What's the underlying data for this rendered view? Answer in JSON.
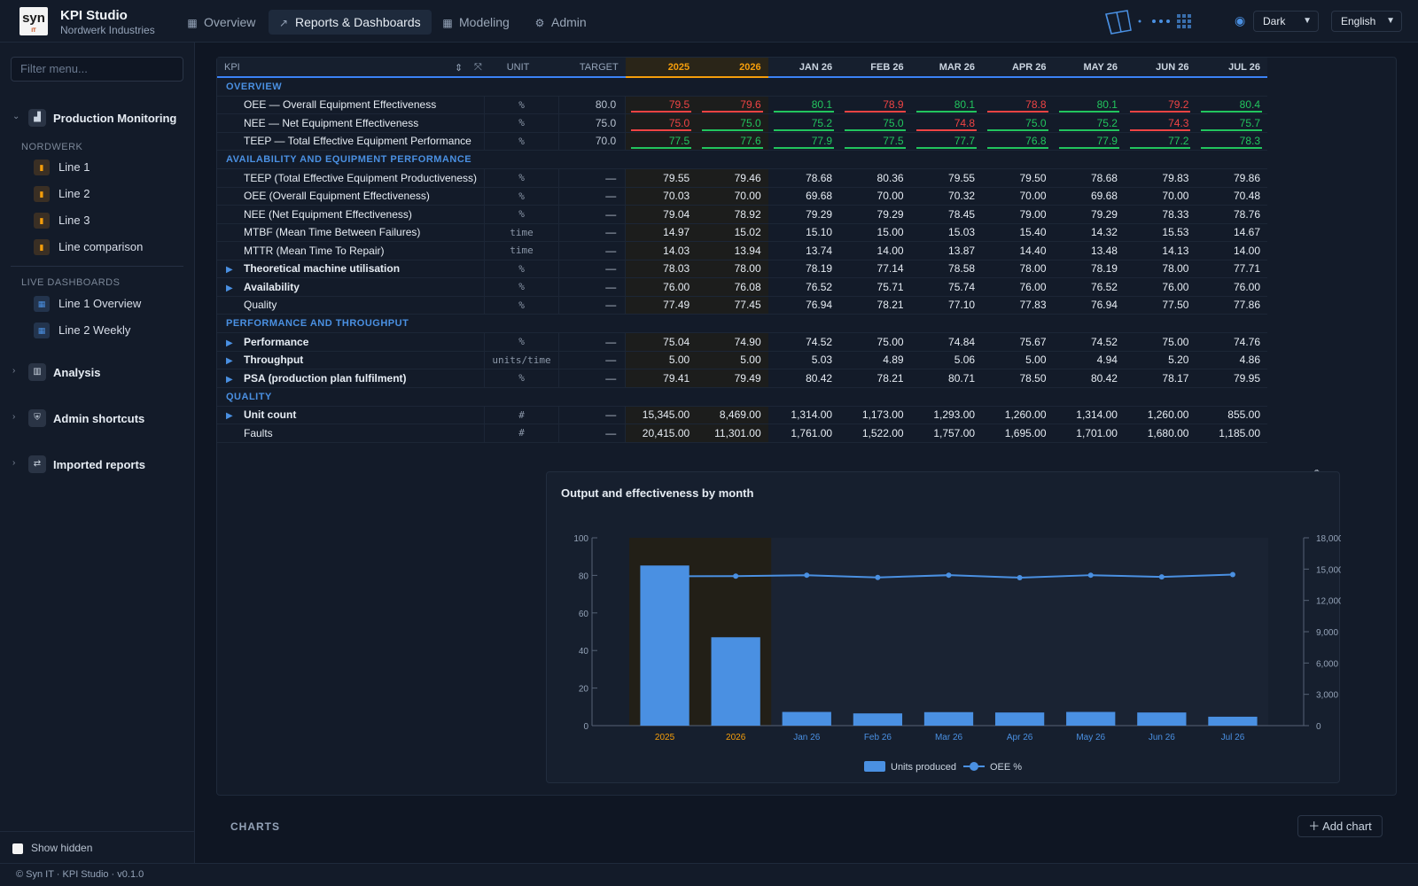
{
  "app": {
    "logo_text": "syn",
    "logo_sub": "IT",
    "title": "KPI Studio",
    "subtitle": "Nordwerk Industries"
  },
  "nav": [
    {
      "label": "Overview",
      "icon": "dashboard-icon"
    },
    {
      "label": "Reports & Dashboards",
      "icon": "trend-icon",
      "active": true
    },
    {
      "label": "Modeling",
      "icon": "grid-icon"
    },
    {
      "label": "Admin",
      "icon": "gear-icon"
    }
  ],
  "header": {
    "theme_label": "Dark",
    "language_label": "English"
  },
  "sidebar": {
    "filter_placeholder": "Filter menu...",
    "groups": {
      "production": "Production Monitoring",
      "analysis": "Analysis",
      "admin": "Admin shortcuts",
      "imported": "Imported reports"
    },
    "sections": {
      "nordwerk": "NORDWERK",
      "live": "LIVE DASHBOARDS"
    },
    "nordwerk_items": [
      "Line 1",
      "Line 2",
      "Line 3",
      "Line comparison"
    ],
    "live_items": [
      "Line 1 Overview",
      "Line 2 Weekly"
    ],
    "show_hidden": "Show hidden"
  },
  "table": {
    "columns": {
      "kpi": "KPI",
      "unit": "UNIT",
      "target": "TARGET"
    },
    "periods": [
      "2025",
      "2026",
      "JAN 26",
      "FEB 26",
      "MAR 26",
      "APR 26",
      "MAY 26",
      "JUN 26",
      "JUL 26"
    ],
    "sections": [
      {
        "title": "OVERVIEW",
        "rows": [
          {
            "name": "OEE — Overall Equipment Effectiveness",
            "unit": "%",
            "target": "80.0",
            "values": [
              "79.5",
              "79.6",
              "80.1",
              "78.9",
              "80.1",
              "78.8",
              "80.1",
              "79.2",
              "80.4"
            ],
            "status": [
              "bad",
              "bad",
              "good",
              "bad",
              "good",
              "bad",
              "good",
              "bad",
              "good"
            ]
          },
          {
            "name": "NEE — Net Equipment Effectiveness",
            "unit": "%",
            "target": "75.0",
            "values": [
              "75.0",
              "75.0",
              "75.2",
              "75.0",
              "74.8",
              "75.0",
              "75.2",
              "74.3",
              "75.7"
            ],
            "status": [
              "bad",
              "good",
              "good",
              "good",
              "bad",
              "good",
              "good",
              "bad",
              "good"
            ]
          },
          {
            "name": "TEEP — Total Effective Equipment Performance",
            "unit": "%",
            "target": "70.0",
            "values": [
              "77.5",
              "77.6",
              "77.9",
              "77.5",
              "77.7",
              "76.8",
              "77.9",
              "77.2",
              "78.3"
            ],
            "status": [
              "good",
              "good",
              "good",
              "good",
              "good",
              "good",
              "good",
              "good",
              "good"
            ]
          }
        ]
      },
      {
        "title": "AVAILABILITY AND EQUIPMENT PERFORMANCE",
        "rows": [
          {
            "name": "TEEP (Total Effective Equipment Productiveness)",
            "unit": "%",
            "target": "—",
            "values": [
              "79.55",
              "79.46",
              "78.68",
              "80.36",
              "79.55",
              "79.50",
              "78.68",
              "79.83",
              "79.86"
            ]
          },
          {
            "name": "OEE (Overall Equipment Effectiveness)",
            "unit": "%",
            "target": "—",
            "values": [
              "70.03",
              "70.00",
              "69.68",
              "70.00",
              "70.32",
              "70.00",
              "69.68",
              "70.00",
              "70.48"
            ]
          },
          {
            "name": "NEE (Net Equipment Effectiveness)",
            "unit": "%",
            "target": "—",
            "values": [
              "79.04",
              "78.92",
              "79.29",
              "79.29",
              "78.45",
              "79.00",
              "79.29",
              "78.33",
              "78.76"
            ]
          },
          {
            "name": "MTBF (Mean Time Between Failures)",
            "unit": "time",
            "target": "—",
            "values": [
              "14.97",
              "15.02",
              "15.10",
              "15.00",
              "15.03",
              "15.40",
              "14.32",
              "15.53",
              "14.67"
            ]
          },
          {
            "name": "MTTR (Mean Time To Repair)",
            "unit": "time",
            "target": "—",
            "values": [
              "14.03",
              "13.94",
              "13.74",
              "14.00",
              "13.87",
              "14.40",
              "13.48",
              "14.13",
              "14.00"
            ]
          },
          {
            "name": "Theoretical machine utilisation",
            "expandable": true,
            "unit": "%",
            "target": "—",
            "values": [
              "78.03",
              "78.00",
              "78.19",
              "77.14",
              "78.58",
              "78.00",
              "78.19",
              "78.00",
              "77.71"
            ]
          },
          {
            "name": "Availability",
            "expandable": true,
            "unit": "%",
            "target": "—",
            "values": [
              "76.00",
              "76.08",
              "76.52",
              "75.71",
              "75.74",
              "76.00",
              "76.52",
              "76.00",
              "76.00"
            ]
          },
          {
            "name": "Quality",
            "unit": "%",
            "target": "—",
            "values": [
              "77.49",
              "77.45",
              "76.94",
              "78.21",
              "77.10",
              "77.83",
              "76.94",
              "77.50",
              "77.86"
            ]
          }
        ]
      },
      {
        "title": "PERFORMANCE AND THROUGHPUT",
        "rows": [
          {
            "name": "Performance",
            "expandable": true,
            "unit": "%",
            "target": "—",
            "values": [
              "75.04",
              "74.90",
              "74.52",
              "75.00",
              "74.84",
              "75.67",
              "74.52",
              "75.00",
              "74.76"
            ]
          },
          {
            "name": "Throughput",
            "expandable": true,
            "unit": "units/time",
            "target": "—",
            "values": [
              "5.00",
              "5.00",
              "5.03",
              "4.89",
              "5.06",
              "5.00",
              "4.94",
              "5.20",
              "4.86"
            ]
          },
          {
            "name": "PSA (production plan fulfilment)",
            "expandable": true,
            "unit": "%",
            "target": "—",
            "values": [
              "79.41",
              "79.49",
              "80.42",
              "78.21",
              "80.71",
              "78.50",
              "80.42",
              "78.17",
              "79.95"
            ]
          }
        ]
      },
      {
        "title": "QUALITY",
        "rows": [
          {
            "name": "Unit count",
            "expandable": true,
            "unit": "#",
            "target": "—",
            "values": [
              "15,345.00",
              "8,469.00",
              "1,314.00",
              "1,173.00",
              "1,293.00",
              "1,260.00",
              "1,314.00",
              "1,260.00",
              "855.00"
            ]
          },
          {
            "name": "Faults",
            "unit": "#",
            "target": "—",
            "values": [
              "20,415.00",
              "11,301.00",
              "1,761.00",
              "1,522.00",
              "1,757.00",
              "1,695.00",
              "1,701.00",
              "1,680.00",
              "1,185.00"
            ]
          }
        ]
      }
    ]
  },
  "chart_data": {
    "type": "bar",
    "title": "Output and effectiveness by month",
    "categories": [
      "2025",
      "2026",
      "Jan 26",
      "Feb 26",
      "Mar 26",
      "Apr 26",
      "May 26",
      "Jun 26",
      "Jul 26"
    ],
    "highlight_categories": [
      "2025",
      "2026"
    ],
    "series": [
      {
        "name": "Units produced",
        "type": "bar",
        "axis": "right",
        "values": [
          15345,
          8469,
          1314,
          1173,
          1293,
          1260,
          1314,
          1260,
          855
        ]
      },
      {
        "name": "OEE %",
        "type": "line",
        "axis": "left",
        "values": [
          79.5,
          79.6,
          80.1,
          78.9,
          80.1,
          78.8,
          80.1,
          79.2,
          80.4
        ]
      }
    ],
    "yleft": {
      "lim": [
        0,
        100
      ],
      "ticks": [
        "0",
        "20",
        "40",
        "60",
        "80",
        "100"
      ]
    },
    "yright": {
      "lim": [
        0,
        18000
      ],
      "ticks": [
        "0",
        "3,000",
        "6,000",
        "9,000",
        "12,000",
        "15,000",
        "18,000"
      ]
    },
    "legend": "bottom",
    "colors": {
      "bar": "#4a90e2",
      "line": "#4a90e2",
      "highlight": "#f59e0b"
    }
  },
  "charts_section": {
    "label": "CHARTS",
    "add_label": "Add chart"
  },
  "footer": {
    "text": "© Syn IT · KPI Studio · v0.1.0"
  }
}
